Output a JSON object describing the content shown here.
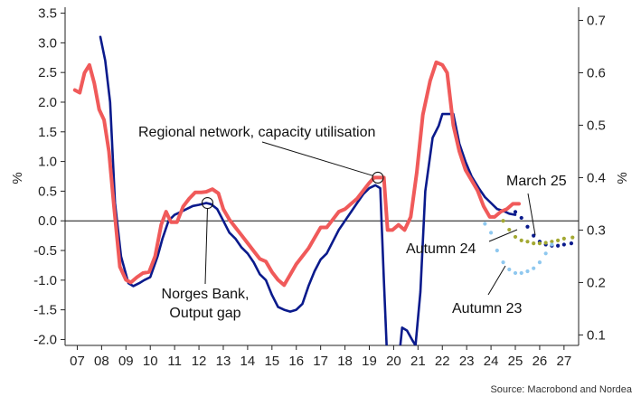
{
  "chart_data": {
    "type": "line",
    "title": "",
    "source": "Source: Macrobond and Nordea",
    "left_axis": {
      "unit": "%",
      "ylim": [
        -2.1,
        3.6
      ],
      "ticks": [
        {
          "v": 3.5,
          "label": "3.5"
        },
        {
          "v": 3.0,
          "label": "3.0"
        },
        {
          "v": 2.5,
          "label": "2.5"
        },
        {
          "v": 2.0,
          "label": "2.0"
        },
        {
          "v": 1.5,
          "label": "1.5"
        },
        {
          "v": 1.0,
          "label": "1.0"
        },
        {
          "v": 0.5,
          "label": "0.5"
        },
        {
          "v": 0.0,
          "label": "0.0"
        },
        {
          "v": -0.5,
          "label": "-0.5"
        },
        {
          "v": -1.0,
          "label": "-1.0"
        },
        {
          "v": -1.5,
          "label": "-1.5"
        },
        {
          "v": -2.0,
          "label": "-2.0"
        }
      ]
    },
    "right_axis": {
      "unit": "%",
      "ylim": [
        0.08,
        0.725
      ],
      "ticks": [
        {
          "v": 0.7,
          "label": "0.7"
        },
        {
          "v": 0.6,
          "label": "0.6"
        },
        {
          "v": 0.5,
          "label": "0.5"
        },
        {
          "v": 0.4,
          "label": "0.4"
        },
        {
          "v": 0.3,
          "label": "0.3"
        },
        {
          "v": 0.2,
          "label": "0.2"
        },
        {
          "v": 0.1,
          "label": "0.1"
        }
      ]
    },
    "x_axis": {
      "xlim": [
        2006.5,
        2027.6
      ],
      "ticks": [
        {
          "v": 2007,
          "label": "07"
        },
        {
          "v": 2008,
          "label": "08"
        },
        {
          "v": 2009,
          "label": "09"
        },
        {
          "v": 2010,
          "label": "10"
        },
        {
          "v": 2011,
          "label": "11"
        },
        {
          "v": 2012,
          "label": "12"
        },
        {
          "v": 2013,
          "label": "13"
        },
        {
          "v": 2014,
          "label": "14"
        },
        {
          "v": 2015,
          "label": "15"
        },
        {
          "v": 2016,
          "label": "16"
        },
        {
          "v": 2017,
          "label": "17"
        },
        {
          "v": 2018,
          "label": "18"
        },
        {
          "v": 2019,
          "label": "19"
        },
        {
          "v": 2020,
          "label": "20"
        },
        {
          "v": 2021,
          "label": "21"
        },
        {
          "v": 2022,
          "label": "22"
        },
        {
          "v": 2023,
          "label": "23"
        },
        {
          "v": 2024,
          "label": "24"
        },
        {
          "v": 2025,
          "label": "25"
        },
        {
          "v": 2026,
          "label": "26"
        },
        {
          "v": 2027,
          "label": "27"
        }
      ]
    },
    "series": [
      {
        "name": "Norges Bank, Output gap",
        "axis": "left",
        "color": "#0a1a8c",
        "style": "solid",
        "points": [
          [
            2007.95,
            3.1
          ],
          [
            2008.15,
            2.7
          ],
          [
            2008.35,
            2.0
          ],
          [
            2008.55,
            0.3
          ],
          [
            2008.8,
            -0.6
          ],
          [
            2009.1,
            -1.05
          ],
          [
            2009.3,
            -1.1
          ],
          [
            2009.55,
            -1.05
          ],
          [
            2009.75,
            -1.0
          ],
          [
            2010.0,
            -0.95
          ],
          [
            2010.3,
            -0.6
          ],
          [
            2010.5,
            -0.3
          ],
          [
            2010.75,
            0.0
          ],
          [
            2011.0,
            0.1
          ],
          [
            2011.25,
            0.15
          ],
          [
            2011.5,
            0.2
          ],
          [
            2011.75,
            0.25
          ],
          [
            2012.0,
            0.27
          ],
          [
            2012.3,
            0.3
          ],
          [
            2012.5,
            0.28
          ],
          [
            2012.75,
            0.2
          ],
          [
            2013.0,
            0.0
          ],
          [
            2013.25,
            -0.2
          ],
          [
            2013.5,
            -0.3
          ],
          [
            2013.75,
            -0.45
          ],
          [
            2014.0,
            -0.55
          ],
          [
            2014.25,
            -0.7
          ],
          [
            2014.5,
            -0.9
          ],
          [
            2014.75,
            -1.0
          ],
          [
            2015.0,
            -1.25
          ],
          [
            2015.25,
            -1.45
          ],
          [
            2015.5,
            -1.5
          ],
          [
            2015.75,
            -1.53
          ],
          [
            2016.0,
            -1.5
          ],
          [
            2016.25,
            -1.4
          ],
          [
            2016.5,
            -1.1
          ],
          [
            2016.75,
            -0.85
          ],
          [
            2017.0,
            -0.65
          ],
          [
            2017.25,
            -0.55
          ],
          [
            2017.5,
            -0.35
          ],
          [
            2017.75,
            -0.15
          ],
          [
            2018.0,
            0.0
          ],
          [
            2018.25,
            0.15
          ],
          [
            2018.5,
            0.3
          ],
          [
            2018.75,
            0.45
          ],
          [
            2019.0,
            0.55
          ],
          [
            2019.25,
            0.6
          ],
          [
            2019.45,
            0.55
          ],
          [
            2019.6,
            -1.0
          ],
          [
            2019.72,
            -2.2
          ],
          [
            2020.25,
            -2.2
          ],
          [
            2020.35,
            -1.8
          ],
          [
            2020.55,
            -1.85
          ],
          [
            2020.75,
            -2.0
          ],
          [
            2020.9,
            -2.1
          ],
          [
            2021.1,
            -1.2
          ],
          [
            2021.3,
            0.5
          ],
          [
            2021.6,
            1.4
          ],
          [
            2021.85,
            1.6
          ],
          [
            2022.0,
            1.8
          ],
          [
            2022.25,
            1.8
          ],
          [
            2022.45,
            1.8
          ],
          [
            2022.7,
            1.3
          ],
          [
            2022.95,
            1.0
          ],
          [
            2023.2,
            0.75
          ],
          [
            2023.5,
            0.55
          ],
          [
            2023.75,
            0.4
          ],
          [
            2024.0,
            0.3
          ],
          [
            2024.25,
            0.2
          ],
          [
            2024.5,
            0.17
          ],
          [
            2024.75,
            0.12
          ],
          [
            2025.0,
            0.1
          ]
        ]
      },
      {
        "name": "Regional network, capacity utilisation",
        "axis": "right",
        "color": "#f05a5a",
        "style": "solid",
        "points": [
          [
            2006.9,
            0.567
          ],
          [
            2007.1,
            0.562
          ],
          [
            2007.3,
            0.6
          ],
          [
            2007.5,
            0.615
          ],
          [
            2007.7,
            0.58
          ],
          [
            2007.9,
            0.53
          ],
          [
            2008.1,
            0.51
          ],
          [
            2008.3,
            0.45
          ],
          [
            2008.5,
            0.35
          ],
          [
            2008.75,
            0.23
          ],
          [
            2009.0,
            0.205
          ],
          [
            2009.2,
            0.2
          ],
          [
            2009.45,
            0.21
          ],
          [
            2009.7,
            0.218
          ],
          [
            2009.95,
            0.22
          ],
          [
            2010.2,
            0.25
          ],
          [
            2010.45,
            0.31
          ],
          [
            2010.65,
            0.335
          ],
          [
            2010.85,
            0.315
          ],
          [
            2011.1,
            0.315
          ],
          [
            2011.35,
            0.345
          ],
          [
            2011.6,
            0.36
          ],
          [
            2011.85,
            0.372
          ],
          [
            2012.1,
            0.372
          ],
          [
            2012.3,
            0.373
          ],
          [
            2012.55,
            0.378
          ],
          [
            2012.8,
            0.37
          ],
          [
            2013.0,
            0.34
          ],
          [
            2013.25,
            0.32
          ],
          [
            2013.5,
            0.305
          ],
          [
            2013.75,
            0.29
          ],
          [
            2014.0,
            0.275
          ],
          [
            2014.25,
            0.26
          ],
          [
            2014.5,
            0.245
          ],
          [
            2014.75,
            0.24
          ],
          [
            2015.0,
            0.22
          ],
          [
            2015.25,
            0.205
          ],
          [
            2015.5,
            0.195
          ],
          [
            2015.75,
            0.215
          ],
          [
            2016.0,
            0.235
          ],
          [
            2016.25,
            0.25
          ],
          [
            2016.5,
            0.265
          ],
          [
            2016.75,
            0.285
          ],
          [
            2017.0,
            0.305
          ],
          [
            2017.25,
            0.305
          ],
          [
            2017.5,
            0.32
          ],
          [
            2017.75,
            0.335
          ],
          [
            2018.0,
            0.34
          ],
          [
            2018.25,
            0.35
          ],
          [
            2018.5,
            0.36
          ],
          [
            2018.75,
            0.375
          ],
          [
            2019.0,
            0.39
          ],
          [
            2019.2,
            0.4
          ],
          [
            2019.4,
            0.4
          ],
          [
            2019.6,
            0.4
          ],
          [
            2019.75,
            0.3
          ],
          [
            2019.95,
            0.3
          ],
          [
            2020.2,
            0.31
          ],
          [
            2020.45,
            0.3
          ],
          [
            2020.7,
            0.325
          ],
          [
            2020.95,
            0.41
          ],
          [
            2021.2,
            0.52
          ],
          [
            2021.5,
            0.585
          ],
          [
            2021.75,
            0.62
          ],
          [
            2022.0,
            0.615
          ],
          [
            2022.2,
            0.6
          ],
          [
            2022.45,
            0.5
          ],
          [
            2022.7,
            0.45
          ],
          [
            2022.95,
            0.415
          ],
          [
            2023.2,
            0.395
          ],
          [
            2023.45,
            0.375
          ],
          [
            2023.7,
            0.345
          ],
          [
            2023.95,
            0.325
          ],
          [
            2024.15,
            0.325
          ],
          [
            2024.4,
            0.335
          ],
          [
            2024.65,
            0.34
          ],
          [
            2024.9,
            0.35
          ],
          [
            2025.15,
            0.35
          ]
        ]
      },
      {
        "name": "March 25",
        "axis": "left",
        "color": "#0a1a8c",
        "style": "dotted",
        "points": [
          [
            2025.0,
            0.15
          ],
          [
            2025.25,
            0.05
          ],
          [
            2025.5,
            -0.1
          ],
          [
            2025.75,
            -0.25
          ],
          [
            2026.0,
            -0.35
          ],
          [
            2026.25,
            -0.4
          ],
          [
            2026.5,
            -0.42
          ],
          [
            2026.75,
            -0.42
          ],
          [
            2027.0,
            -0.4
          ],
          [
            2027.3,
            -0.38
          ]
        ]
      },
      {
        "name": "Autumn 24",
        "axis": "left",
        "color": "#a3a832",
        "style": "dotted",
        "points": [
          [
            2024.5,
            0.0
          ],
          [
            2024.75,
            -0.15
          ],
          [
            2025.0,
            -0.27
          ],
          [
            2025.25,
            -0.33
          ],
          [
            2025.5,
            -0.35
          ],
          [
            2025.75,
            -0.38
          ],
          [
            2026.0,
            -0.38
          ],
          [
            2026.25,
            -0.37
          ],
          [
            2026.5,
            -0.35
          ],
          [
            2026.75,
            -0.33
          ],
          [
            2027.0,
            -0.3
          ],
          [
            2027.35,
            -0.28
          ]
        ]
      },
      {
        "name": "Autumn 23",
        "axis": "left",
        "color": "#8fc8ef",
        "style": "dotted",
        "points": [
          [
            2023.75,
            -0.05
          ],
          [
            2024.0,
            -0.2
          ],
          [
            2024.25,
            -0.5
          ],
          [
            2024.5,
            -0.7
          ],
          [
            2024.75,
            -0.82
          ],
          [
            2025.0,
            -0.88
          ],
          [
            2025.25,
            -0.88
          ],
          [
            2025.5,
            -0.85
          ],
          [
            2025.75,
            -0.8
          ],
          [
            2026.0,
            -0.7
          ],
          [
            2026.25,
            -0.55
          ],
          [
            2026.5,
            -0.4
          ]
        ]
      }
    ],
    "annotations": [
      {
        "text": "Regional network, capacity utilisation",
        "marker": {
          "axis": "right",
          "x": 2019.35,
          "y": 0.4
        }
      },
      {
        "text_lines": [
          "Norges Bank,",
          "Output gap"
        ],
        "marker": {
          "axis": "left",
          "x": 2012.35,
          "y": 0.3
        }
      },
      {
        "text": "March 25"
      },
      {
        "text": "Autumn 24"
      },
      {
        "text": "Autumn 23"
      }
    ]
  }
}
